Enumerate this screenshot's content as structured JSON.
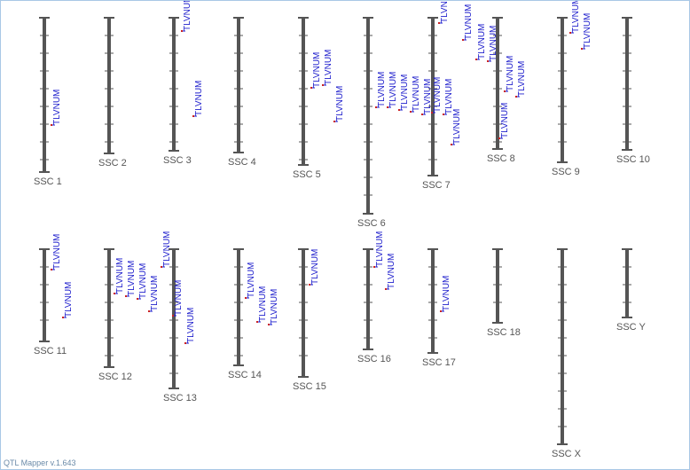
{
  "app": {
    "footer": "QTL Mapper v.1.643"
  },
  "colors": {
    "chromosome": "#555555",
    "qtl_text": "#1d1dcc",
    "qtl_mark": "#cc2222",
    "border": "#a9c8e6"
  },
  "chromosomes": [
    {
      "label": "SSC 1",
      "qtls": [
        "TLVNUM"
      ]
    },
    {
      "label": "SSC 2",
      "qtls": []
    },
    {
      "label": "SSC 3",
      "qtls": [
        "TLVNUM",
        "TLVNUM"
      ]
    },
    {
      "label": "SSC 4",
      "qtls": []
    },
    {
      "label": "SSC 5",
      "qtls": [
        "TLVNUM",
        "TLVNUM",
        "TLVNUM"
      ]
    },
    {
      "label": "SSC 6",
      "qtls": [
        "TLVNUM",
        "TLVNUM",
        "TLVNUM",
        "TLVNUM",
        "TLVNUM"
      ]
    },
    {
      "label": "SSC 7",
      "qtls": [
        "TLVNUM",
        "TLVNUM",
        "TLVNUM",
        "TLVNUM",
        "TLVNUM",
        "TLVNUM"
      ]
    },
    {
      "label": "SSC 8",
      "qtls": [
        "TLVNUM",
        "TLVNUM",
        "TLVNUM",
        "TLVNUM"
      ]
    },
    {
      "label": "SSC 9",
      "qtls": [
        "TLVNUM",
        "TLVNUM"
      ]
    },
    {
      "label": "SSC 10",
      "qtls": []
    },
    {
      "label": "SSC 11",
      "qtls": [
        "TLVNUM",
        "TLVNUM"
      ]
    },
    {
      "label": "SSC 12",
      "qtls": [
        "TLVNUM",
        "TLVNUM",
        "TLVNUM",
        "TLVNUM"
      ]
    },
    {
      "label": "SSC 13",
      "qtls": [
        "TLVNUM",
        "TLVNUM",
        "TLVNUM"
      ]
    },
    {
      "label": "SSC 14",
      "qtls": [
        "TLVNUM",
        "TLVNUM",
        "TLVNUM"
      ]
    },
    {
      "label": "SSC 15",
      "qtls": [
        "TLVNUM"
      ]
    },
    {
      "label": "SSC 16",
      "qtls": [
        "TLVNUM",
        "TLVNUM"
      ]
    },
    {
      "label": "SSC 17",
      "qtls": [
        "TLVNUM"
      ]
    },
    {
      "label": "SSC 18",
      "qtls": []
    },
    {
      "label": "SSC X",
      "qtls": []
    },
    {
      "label": "SSC Y",
      "qtls": []
    }
  ]
}
